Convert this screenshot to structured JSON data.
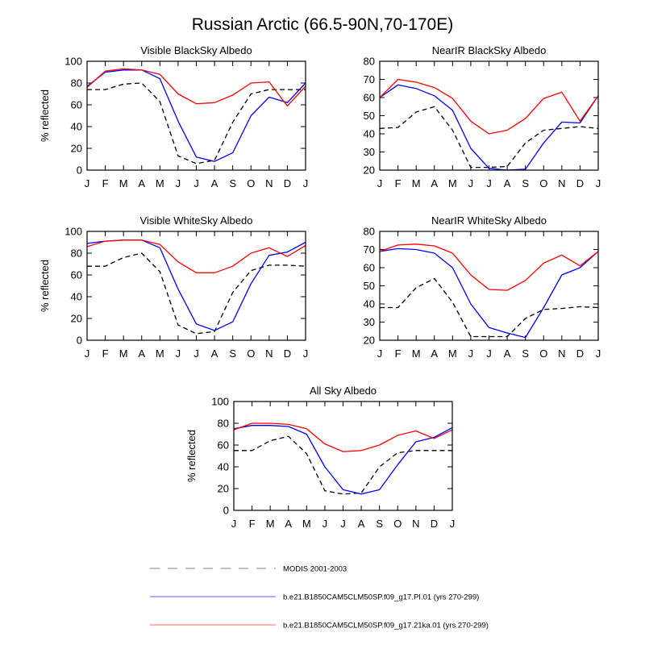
{
  "title": "Russian Arctic (66.5-90N,70-170E)",
  "months": [
    "J",
    "F",
    "M",
    "A",
    "M",
    "J",
    "J",
    "A",
    "S",
    "O",
    "N",
    "D",
    "J"
  ],
  "colors": {
    "modis": "#000000",
    "pi": "#0000ff",
    "ka21": "#ff0000"
  },
  "legend": [
    {
      "key": "modis",
      "label": "MODIS 2001-2003",
      "style": "dashed",
      "color": "#999999"
    },
    {
      "key": "pi",
      "label": "b.e21.B1850CAM5CLM50SP.f09_g17.PI.01 (yrs 270-299)",
      "style": "solid",
      "color": "#8080ff"
    },
    {
      "key": "ka21",
      "label": "b.e21.B1850CAM5CLM50SP.f09_g17.21ka.01 (yrs 270-299)",
      "style": "solid",
      "color": "#ff8080"
    }
  ],
  "chart_data": [
    {
      "type": "line",
      "title": "Visible BlackSky Albedo",
      "ylabel": "% reflected",
      "xlabel": "",
      "ylim": [
        0,
        100
      ],
      "yticks": [
        0,
        20,
        40,
        60,
        80,
        100
      ],
      "categories": [
        "J",
        "F",
        "M",
        "A",
        "M",
        "J",
        "J",
        "A",
        "S",
        "O",
        "N",
        "D",
        "J"
      ],
      "series": [
        {
          "name": "MODIS 2001-2003",
          "key": "modis",
          "values": [
            74,
            74,
            79,
            80,
            63,
            13,
            6,
            9,
            44,
            70,
            74,
            74,
            74
          ]
        },
        {
          "name": "b.e21.B1850CAM5CLM50SP.f09_g17.PI.01 (yrs 270-299)",
          "key": "pi",
          "values": [
            77,
            90,
            92,
            92,
            84,
            45,
            12,
            8,
            16,
            50,
            67,
            62,
            80
          ]
        },
        {
          "name": "b.e21.B1850CAM5CLM50SP.f09_g17.21ka.01 (yrs 270-299)",
          "key": "ka21",
          "values": [
            76,
            91,
            93,
            92,
            88,
            70,
            61,
            62,
            69,
            80,
            81,
            59,
            77
          ]
        }
      ]
    },
    {
      "type": "line",
      "title": "NearIR BlackSky Albedo",
      "ylabel": "",
      "xlabel": "",
      "ylim": [
        20,
        80
      ],
      "yticks": [
        20,
        30,
        40,
        50,
        60,
        70,
        80
      ],
      "categories": [
        "J",
        "F",
        "M",
        "A",
        "M",
        "J",
        "J",
        "A",
        "S",
        "O",
        "N",
        "D",
        "J"
      ],
      "series": [
        {
          "name": "MODIS 2001-2003",
          "key": "modis",
          "values": [
            43,
            43.5,
            52,
            55,
            42,
            21.5,
            21.5,
            22,
            35,
            42,
            43,
            44,
            43
          ]
        },
        {
          "name": "b.e21.B1850CAM5CLM50SP.f09_g17.PI.01 (yrs 270-299)",
          "key": "pi",
          "values": [
            60,
            67,
            65,
            61,
            53,
            32,
            21,
            20,
            20.5,
            35,
            46.5,
            46,
            61
          ]
        },
        {
          "name": "b.e21.B1850CAM5CLM50SP.f09_g17.21ka.01 (yrs 270-299)",
          "key": "ka21",
          "values": [
            60,
            70,
            68.5,
            65.5,
            59.5,
            47,
            40,
            42,
            48.5,
            59.5,
            63,
            47,
            61
          ]
        }
      ]
    },
    {
      "type": "line",
      "title": "Visible WhiteSky Albedo",
      "ylabel": "% reflected",
      "xlabel": "",
      "ylim": [
        0,
        100
      ],
      "yticks": [
        0,
        20,
        40,
        60,
        80,
        100
      ],
      "categories": [
        "J",
        "F",
        "M",
        "A",
        "M",
        "J",
        "J",
        "A",
        "S",
        "O",
        "N",
        "D",
        "J"
      ],
      "series": [
        {
          "name": "MODIS 2001-2003",
          "key": "modis",
          "values": [
            68,
            68,
            76,
            80,
            63,
            14,
            6,
            8,
            44,
            64,
            69,
            69,
            68
          ]
        },
        {
          "name": "b.e21.B1850CAM5CLM50SP.f09_g17.PI.01 (yrs 270-299)",
          "key": "pi",
          "values": [
            89,
            91,
            92,
            92,
            85,
            47,
            15,
            9,
            17,
            52,
            78,
            81,
            90
          ]
        },
        {
          "name": "b.e21.B1850CAM5CLM50SP.f09_g17.21ka.01 (yrs 270-299)",
          "key": "ka21",
          "values": [
            86,
            91,
            92,
            92,
            88,
            72,
            62,
            62,
            68,
            80,
            85,
            77,
            87
          ]
        }
      ]
    },
    {
      "type": "line",
      "title": "NearIR WhiteSky Albedo",
      "ylabel": "",
      "xlabel": "",
      "ylim": [
        20,
        80
      ],
      "yticks": [
        20,
        30,
        40,
        50,
        60,
        70,
        80
      ],
      "categories": [
        "J",
        "F",
        "M",
        "A",
        "M",
        "J",
        "J",
        "A",
        "S",
        "O",
        "N",
        "D",
        "J"
      ],
      "series": [
        {
          "name": "MODIS 2001-2003",
          "key": "modis",
          "values": [
            38,
            38,
            49,
            54,
            41,
            22,
            22,
            22,
            32,
            37,
            37.5,
            38.5,
            38
          ]
        },
        {
          "name": "b.e21.B1850CAM5CLM50SP.f09_g17.PI.01 (yrs 270-299)",
          "key": "pi",
          "values": [
            69,
            70.5,
            70,
            68,
            60,
            40,
            27,
            24,
            21.5,
            38,
            56,
            60,
            69
          ]
        },
        {
          "name": "b.e21.B1850CAM5CLM50SP.f09_g17.21ka.01 (yrs 270-299)",
          "key": "ka21",
          "values": [
            69,
            72.5,
            73,
            72,
            68,
            56,
            48,
            47.5,
            53,
            62.5,
            67,
            61,
            69
          ]
        }
      ]
    },
    {
      "type": "line",
      "title": "All Sky Albedo",
      "ylabel": "% reflected",
      "xlabel": "",
      "ylim": [
        0,
        100
      ],
      "yticks": [
        0,
        20,
        40,
        60,
        80,
        100
      ],
      "categories": [
        "J",
        "F",
        "M",
        "A",
        "M",
        "J",
        "J",
        "A",
        "S",
        "O",
        "N",
        "D",
        "J"
      ],
      "series": [
        {
          "name": "MODIS 2001-2003",
          "key": "modis",
          "values": [
            55,
            55,
            64,
            68,
            52,
            18,
            15,
            16,
            40,
            53,
            55,
            55,
            55
          ]
        },
        {
          "name": "b.e21.B1850CAM5CLM50SP.f09_g17.PI.01 (yrs 270-299)",
          "key": "pi",
          "values": [
            75,
            78,
            78,
            77,
            70,
            40,
            19,
            15,
            19,
            42,
            63,
            67,
            76
          ]
        },
        {
          "name": "b.e21.B1850CAM5CLM50SP.f09_g17.21ka.01 (yrs 270-299)",
          "key": "ka21",
          "values": [
            74,
            80,
            80,
            79,
            75,
            61,
            54,
            55,
            60,
            69,
            73,
            66,
            74
          ]
        }
      ]
    }
  ]
}
